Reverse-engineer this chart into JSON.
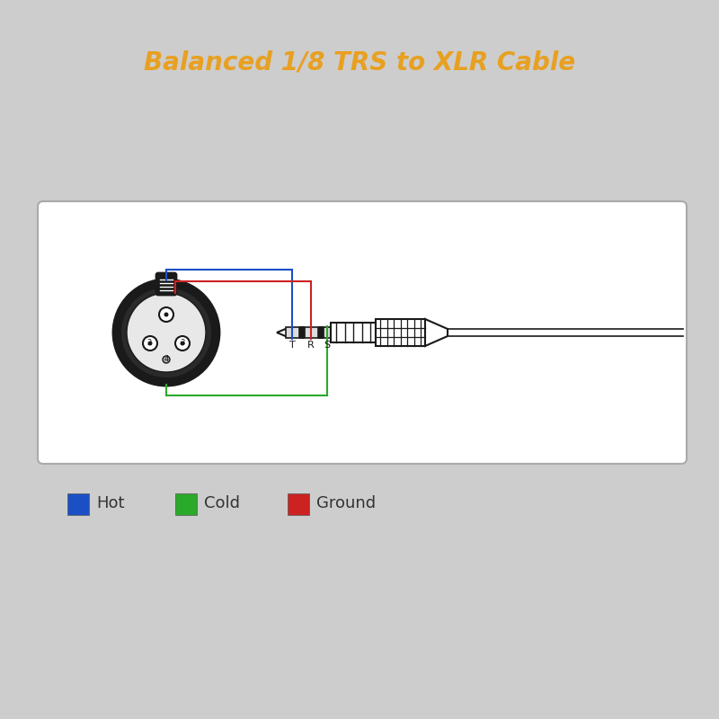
{
  "title": "Balanced 1/8 TRS to XLR Cable",
  "title_color": "#E8A020",
  "title_fontsize": 20,
  "background_color": "#CDCDCD",
  "legend": [
    {
      "label": "Hot",
      "color": "#1B4FC4"
    },
    {
      "label": "Cold",
      "color": "#2AAA2A"
    },
    {
      "label": "Ground",
      "color": "#CC2222"
    }
  ],
  "wire_blue": "#1B4FC4",
  "wire_green": "#2AAA2A",
  "wire_red": "#CC2222",
  "line_color": "#1A1A1A"
}
